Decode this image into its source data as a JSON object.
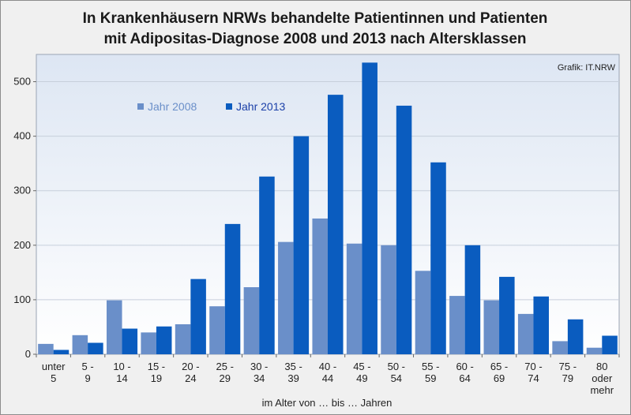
{
  "chart_data": {
    "type": "bar",
    "title": "In Krankenhäusern NRWs behandelte Patientinnen und Patienten mit Adipositas-Diagnose 2008 und 2013 nach Altersklassen",
    "title_lines": [
      "In Krankenhäusern NRWs behandelte Patientinnen und Patienten",
      "mit Adipositas-Diagnose 2008 und 2013 nach Altersklassen"
    ],
    "source": "Grafik: IT.NRW",
    "xlabel": "im Alter von … bis … Jahren",
    "ylabel": "",
    "ylim": [
      0,
      550
    ],
    "yticks": [
      0,
      100,
      200,
      300,
      400,
      500
    ],
    "grid": true,
    "legend_position": "top-left",
    "categories": [
      [
        "unter",
        "5"
      ],
      [
        "5 -",
        "9"
      ],
      [
        "10 -",
        "14"
      ],
      [
        "15 -",
        "19"
      ],
      [
        "20 -",
        "24"
      ],
      [
        "25 -",
        "29"
      ],
      [
        "30 -",
        "34"
      ],
      [
        "35 -",
        "39"
      ],
      [
        "40 -",
        "44"
      ],
      [
        "45 -",
        "49"
      ],
      [
        "50 -",
        "54"
      ],
      [
        "55 -",
        "59"
      ],
      [
        "60 -",
        "64"
      ],
      [
        "65 -",
        "69"
      ],
      [
        "70 -",
        "74"
      ],
      [
        "75 -",
        "79"
      ],
      [
        "80",
        "oder",
        "mehr"
      ]
    ],
    "series": [
      {
        "name": "Jahr 2008",
        "color": "#6a8fc9",
        "values": [
          19,
          35,
          99,
          40,
          55,
          88,
          123,
          206,
          249,
          203,
          200,
          153,
          107,
          99,
          74,
          24,
          12
        ]
      },
      {
        "name": "Jahr 2013",
        "color": "#0a5cbf",
        "values": [
          8,
          21,
          47,
          51,
          138,
          239,
          326,
          400,
          476,
          535,
          456,
          352,
          200,
          142,
          106,
          64,
          34
        ]
      }
    ]
  },
  "colors": {
    "plot_top": "#dde6f3",
    "plot_bottom": "#ffffff",
    "legend_2008_text": "#6a8fc9",
    "legend_2013_text": "#1a3fa8"
  }
}
